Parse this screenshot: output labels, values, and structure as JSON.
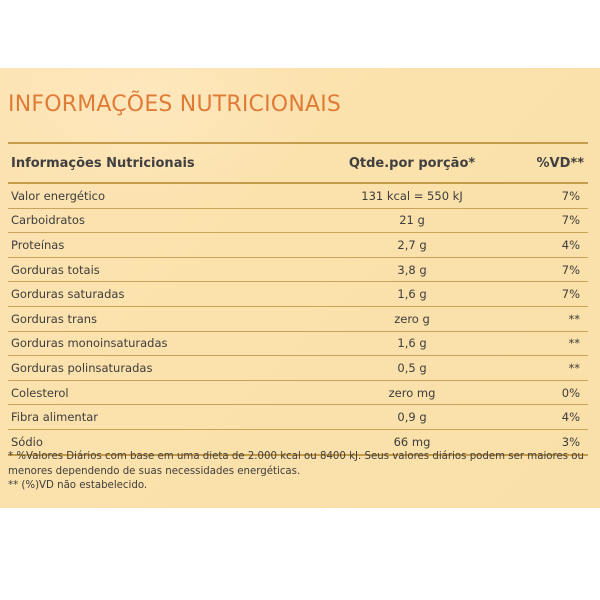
{
  "title": "INFORMAÇÕES NUTRICIONAIS",
  "table": {
    "headers": {
      "name": "Informações Nutricionais",
      "quantity": "Qtde.por porção*",
      "dv": "%VD**"
    },
    "rows": [
      {
        "name": "Valor energético",
        "quantity": "131 kcal = 550 kJ",
        "dv": "7%"
      },
      {
        "name": "Carboidratos",
        "quantity": "21 g",
        "dv": "7%"
      },
      {
        "name": "Proteínas",
        "quantity": "2,7 g",
        "dv": "4%"
      },
      {
        "name": "Gorduras totais",
        "quantity": "3,8 g",
        "dv": "7%"
      },
      {
        "name": "Gorduras saturadas",
        "quantity": "1,6 g",
        "dv": "7%"
      },
      {
        "name": "Gorduras trans",
        "quantity": "zero g",
        "dv": "**"
      },
      {
        "name": "Gorduras monoinsaturadas",
        "quantity": "1,6 g",
        "dv": "**"
      },
      {
        "name": "Gorduras polinsaturadas",
        "quantity": "0,5 g",
        "dv": "**"
      },
      {
        "name": "Colesterol",
        "quantity": "zero mg",
        "dv": "0%"
      },
      {
        "name": "Fibra alimentar",
        "quantity": "0,9 g",
        "dv": "4%"
      },
      {
        "name": "Sódio",
        "quantity": "66 mg",
        "dv": "3%"
      }
    ]
  },
  "footnotes": {
    "line1": "* %Valores Diários com base em uma dieta de 2.000 kcal ou 8400 kJ. Seus valores diários podem ser maiores ou menores dependendo de suas necessidades energéticas.",
    "line2": "** (%)VD não estabelecido."
  },
  "colors": {
    "title": "#e07b37",
    "panel_background": "#fbe1ab",
    "rule": "#c59b4c",
    "text": "#3d3d3d"
  }
}
